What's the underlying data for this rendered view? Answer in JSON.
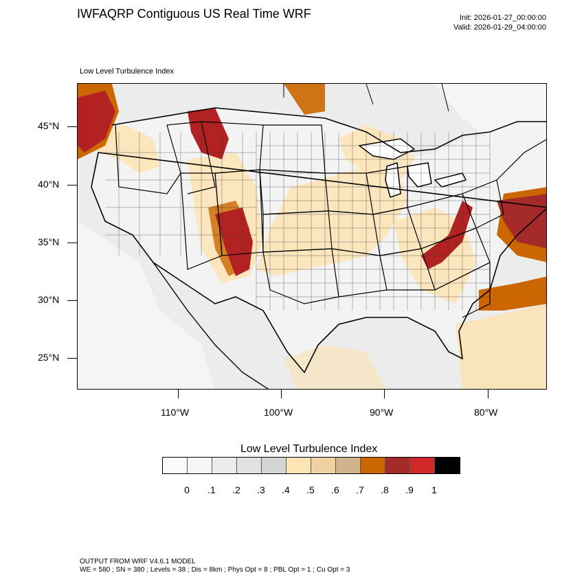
{
  "header": {
    "title": "IWFAQRP Contiguous US Real Time WRF",
    "init": "Init: 2026-01-27_00:00:00",
    "valid": "Valid: 2026-01-29_04:00:00"
  },
  "map": {
    "subtitle": "Low Level Turbulence Index",
    "field": "Low Level Turbulence Index",
    "region": "Contiguous US",
    "lat_labels": [
      "45°N",
      "40°N",
      "35°N",
      "30°N",
      "25°N"
    ],
    "lon_labels": [
      "110°W",
      "100°W",
      "90°W",
      "80°W"
    ],
    "colors": {
      "background_field": "#ececec",
      "ocean_field": "#f2f2f2",
      "low_turbulence": "#fbe3b4",
      "moderate_turbulence": "#cc6600",
      "high_turbulence": "#b22222",
      "boundary_line": "#000000"
    }
  },
  "colorbar": {
    "title": "Low Level Turbulence Index",
    "labels": [
      "0",
      ".1",
      ".2",
      ".3",
      ".4",
      ".5",
      ".6",
      ".7",
      ".8",
      ".9",
      "1"
    ],
    "colors": [
      "#fbfbfb",
      "#f5f5f5",
      "#ececec",
      "#e1e1e1",
      "#d5d5d5",
      "#fde4b4",
      "#f0d2a2",
      "#d2b48c",
      "#cc6600",
      "#a52a2a",
      "#d02828",
      "#000000"
    ]
  },
  "footer": {
    "line1": "OUTPUT FROM WRF V4.6.1 MODEL",
    "line2": "WE = 580 ; SN = 380 ; Levels = 38 ; Dis = 8km ; Phys Opt = 8 ; PBL Opt = 1 ; Cu Opt = 3"
  }
}
